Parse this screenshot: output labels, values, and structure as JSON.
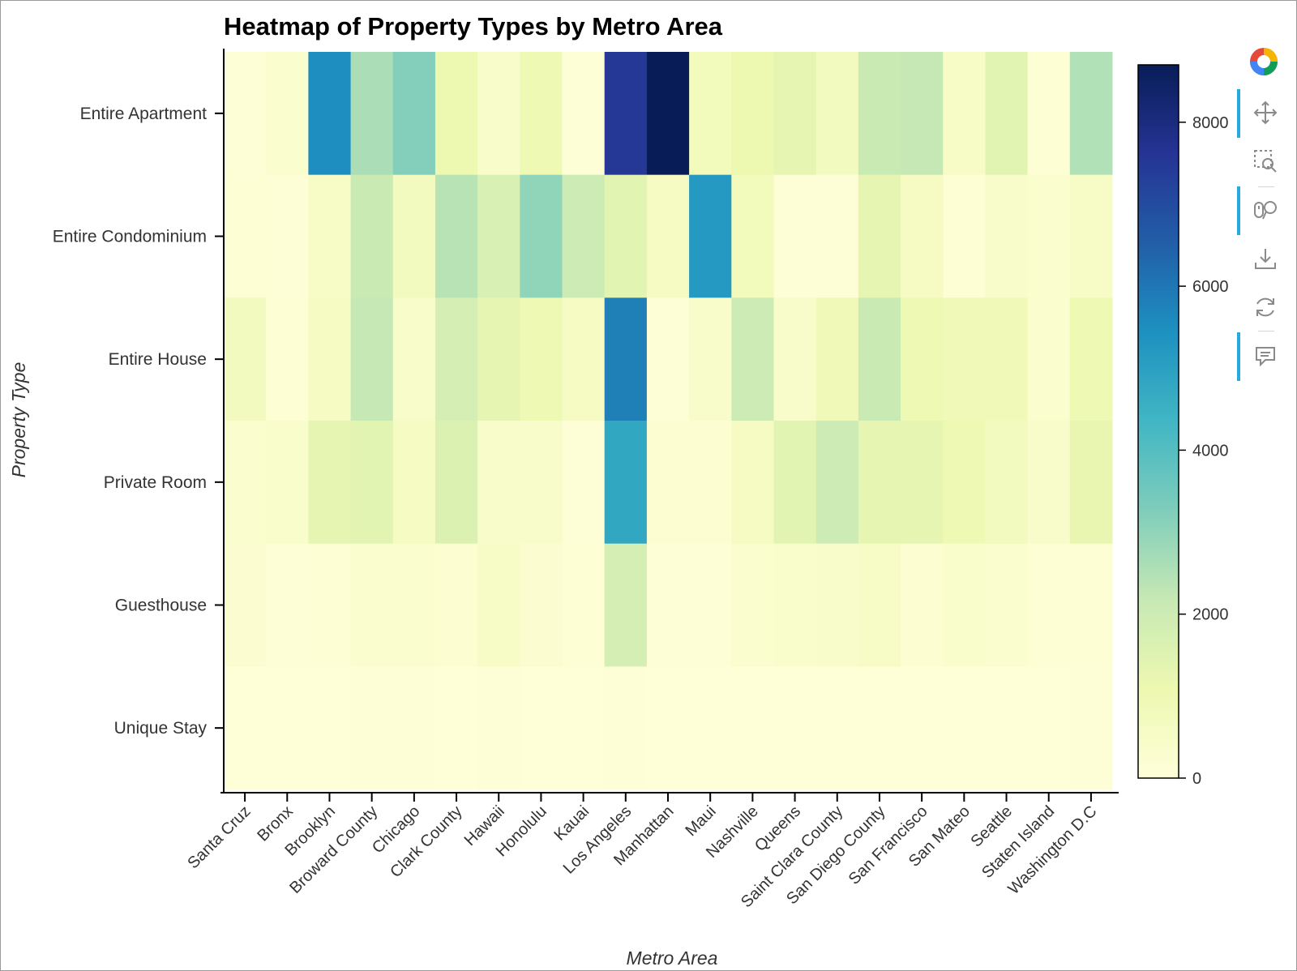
{
  "chart_data": {
    "type": "heatmap",
    "title": "Heatmap of Property Types by Metro Area",
    "xlabel": "Metro Area",
    "ylabel": "Property Type",
    "x": [
      "Santa Cruz",
      "Bronx",
      "Brooklyn",
      "Broward County",
      "Chicago",
      "Clark County",
      "Hawaii",
      "Honolulu",
      "Kauai",
      "Los Angeles",
      "Manhattan",
      "Maui",
      "Nashville",
      "Queens",
      "Saint Clara County",
      "San Diego County",
      "San Francisco",
      "San Mateo",
      "Seattle",
      "Staten Island",
      "Washington D.C"
    ],
    "y": [
      "Entire Apartment",
      "Entire Condominium",
      "Entire House",
      "Private Room",
      "Guesthouse",
      "Unique Stay"
    ],
    "values": [
      [
        80,
        300,
        5500,
        2600,
        3200,
        1100,
        400,
        1000,
        100,
        7500,
        8700,
        800,
        1100,
        1300,
        700,
        2100,
        2200,
        500,
        1400,
        150,
        2500
      ],
      [
        150,
        100,
        500,
        2100,
        700,
        2400,
        1700,
        3000,
        2000,
        1400,
        600,
        5200,
        800,
        100,
        80,
        1300,
        600,
        150,
        400,
        300,
        500
      ],
      [
        700,
        150,
        600,
        2200,
        400,
        1800,
        1300,
        1000,
        600,
        5800,
        100,
        400,
        2000,
        400,
        900,
        2100,
        1000,
        900,
        900,
        300,
        1000
      ],
      [
        300,
        350,
        1300,
        1400,
        600,
        1600,
        400,
        400,
        100,
        4800,
        200,
        200,
        600,
        1400,
        2000,
        1300,
        1300,
        1000,
        700,
        400,
        1200
      ],
      [
        250,
        100,
        150,
        300,
        300,
        200,
        500,
        250,
        150,
        1800,
        100,
        100,
        300,
        350,
        400,
        500,
        200,
        350,
        300,
        150,
        150
      ],
      [
        50,
        50,
        50,
        100,
        100,
        50,
        100,
        50,
        50,
        100,
        50,
        50,
        50,
        50,
        50,
        50,
        50,
        50,
        50,
        50,
        100
      ]
    ],
    "colorbar": {
      "min": 0,
      "max": 8700,
      "ticks": [
        0,
        2000,
        4000,
        6000,
        8000
      ]
    },
    "colormap": [
      "#ffffd9",
      "#edf8b1",
      "#c7e9b4",
      "#7fcdbb",
      "#41b6c4",
      "#1d91c0",
      "#225ea8",
      "#253494",
      "#081d58"
    ],
    "grid": false,
    "legend": "colorbar-right"
  },
  "toolbar": {
    "tools": [
      {
        "name": "pan-tool-button",
        "icon": "pan-icon",
        "active": true
      },
      {
        "name": "box-zoom-tool-button",
        "icon": "box-zoom-icon",
        "active": false
      },
      {
        "name": "wheel-zoom-tool-button",
        "icon": "wheel-zoom-icon",
        "active": true
      },
      {
        "name": "save-tool-button",
        "icon": "save-icon",
        "active": false
      },
      {
        "name": "reset-tool-button",
        "icon": "reset-icon",
        "active": false
      },
      {
        "name": "hover-tool-button",
        "icon": "hover-icon",
        "active": true
      }
    ]
  }
}
